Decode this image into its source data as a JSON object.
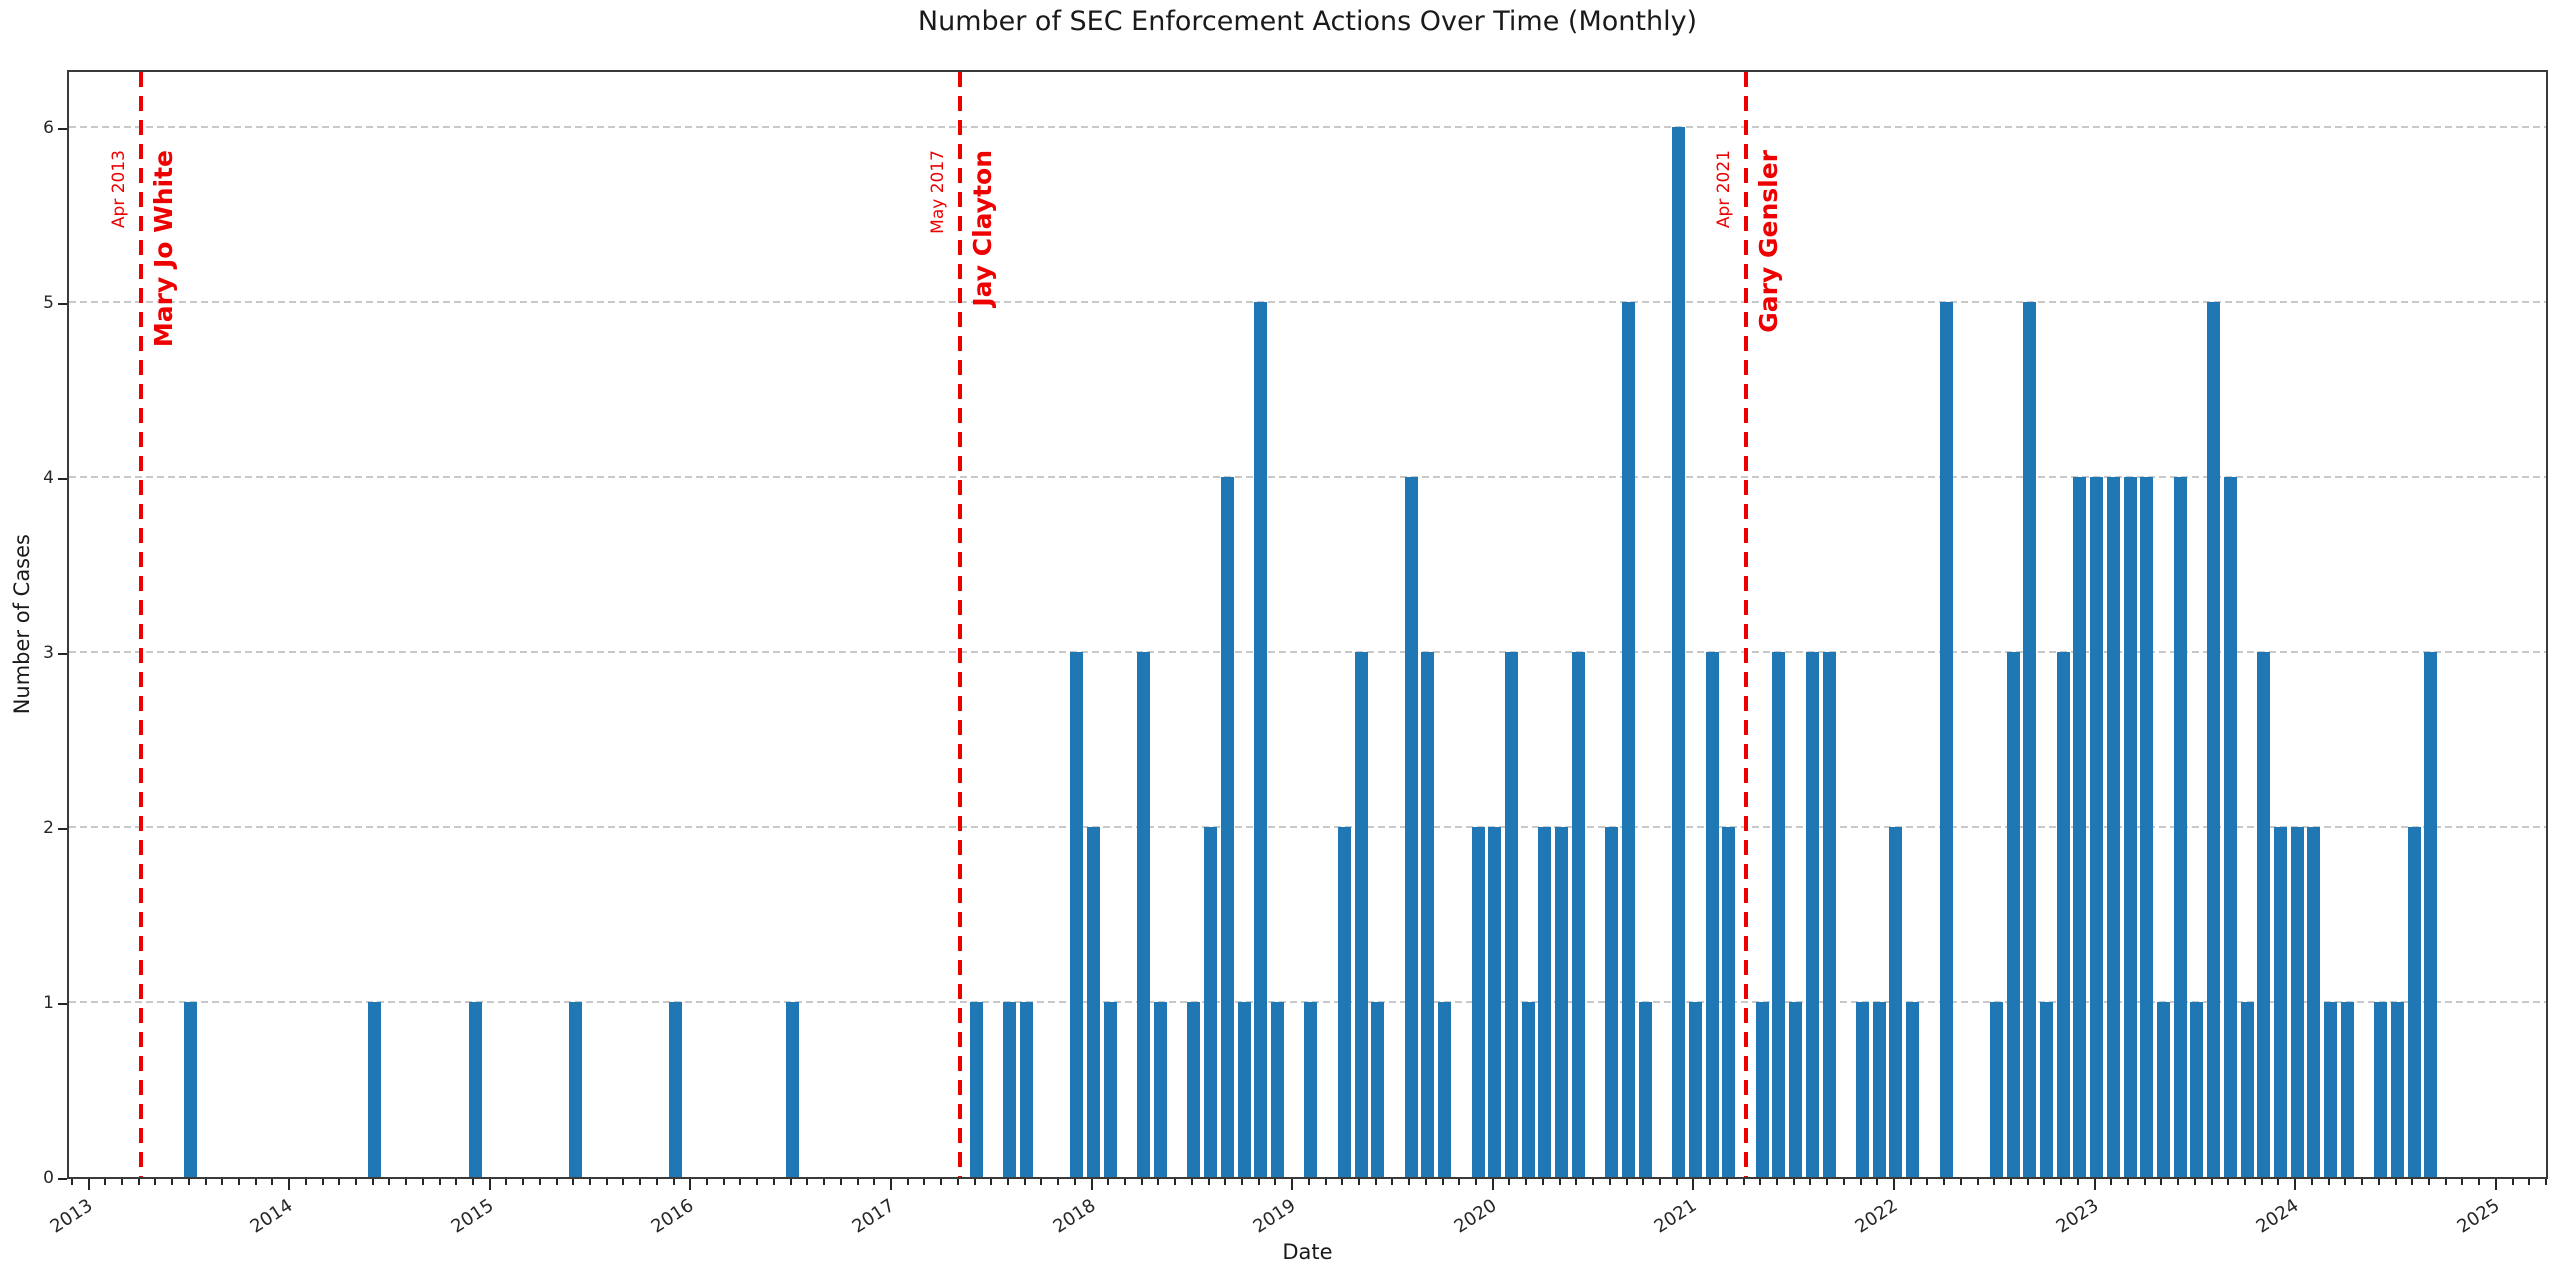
{
  "chart_data": {
    "type": "bar",
    "title": "Number of SEC Enforcement Actions Over Time (Monthly)",
    "xlabel": "Date",
    "ylabel": "Number of Cases",
    "y_ticks": [
      0,
      1,
      2,
      3,
      4,
      5,
      6
    ],
    "ylim": [
      0,
      6.34
    ],
    "x_tick_years": [
      2013,
      2014,
      2015,
      2016,
      2017,
      2018,
      2019,
      2020,
      2021,
      2022,
      2023,
      2024,
      2025
    ],
    "xlim_months": [
      "2012-12",
      "2025-04"
    ],
    "grid": "horizontal-dashed",
    "legend": "none",
    "bar_color": "#1f77b4",
    "annotation_color": "#ee0000",
    "points": [
      {
        "month": "2013-07",
        "value": 1
      },
      {
        "month": "2014-06",
        "value": 1
      },
      {
        "month": "2014-12",
        "value": 1
      },
      {
        "month": "2015-06",
        "value": 1
      },
      {
        "month": "2015-12",
        "value": 1
      },
      {
        "month": "2016-07",
        "value": 1
      },
      {
        "month": "2017-06",
        "value": 1
      },
      {
        "month": "2017-08",
        "value": 1
      },
      {
        "month": "2017-09",
        "value": 1
      },
      {
        "month": "2017-12",
        "value": 3
      },
      {
        "month": "2018-01",
        "value": 2
      },
      {
        "month": "2018-02",
        "value": 1
      },
      {
        "month": "2018-04",
        "value": 3
      },
      {
        "month": "2018-05",
        "value": 1
      },
      {
        "month": "2018-07",
        "value": 1
      },
      {
        "month": "2018-08",
        "value": 2
      },
      {
        "month": "2018-09",
        "value": 4
      },
      {
        "month": "2018-10",
        "value": 1
      },
      {
        "month": "2018-11",
        "value": 5
      },
      {
        "month": "2018-12",
        "value": 1
      },
      {
        "month": "2019-02",
        "value": 1
      },
      {
        "month": "2019-04",
        "value": 2
      },
      {
        "month": "2019-05",
        "value": 3
      },
      {
        "month": "2019-06",
        "value": 1
      },
      {
        "month": "2019-08",
        "value": 4
      },
      {
        "month": "2019-09",
        "value": 3
      },
      {
        "month": "2019-10",
        "value": 1
      },
      {
        "month": "2019-12",
        "value": 2
      },
      {
        "month": "2020-01",
        "value": 2
      },
      {
        "month": "2020-02",
        "value": 3
      },
      {
        "month": "2020-03",
        "value": 1
      },
      {
        "month": "2020-04",
        "value": 2
      },
      {
        "month": "2020-05",
        "value": 2
      },
      {
        "month": "2020-06",
        "value": 3
      },
      {
        "month": "2020-08",
        "value": 2
      },
      {
        "month": "2020-09",
        "value": 5
      },
      {
        "month": "2020-10",
        "value": 1
      },
      {
        "month": "2020-12",
        "value": 6
      },
      {
        "month": "2021-01",
        "value": 1
      },
      {
        "month": "2021-02",
        "value": 3
      },
      {
        "month": "2021-03",
        "value": 2
      },
      {
        "month": "2021-05",
        "value": 1
      },
      {
        "month": "2021-06",
        "value": 3
      },
      {
        "month": "2021-07",
        "value": 1
      },
      {
        "month": "2021-08",
        "value": 3
      },
      {
        "month": "2021-09",
        "value": 3
      },
      {
        "month": "2021-11",
        "value": 1
      },
      {
        "month": "2021-12",
        "value": 1
      },
      {
        "month": "2022-01",
        "value": 2
      },
      {
        "month": "2022-02",
        "value": 1
      },
      {
        "month": "2022-04",
        "value": 5
      },
      {
        "month": "2022-07",
        "value": 1
      },
      {
        "month": "2022-08",
        "value": 3
      },
      {
        "month": "2022-09",
        "value": 5
      },
      {
        "month": "2022-10",
        "value": 1
      },
      {
        "month": "2022-11",
        "value": 3
      },
      {
        "month": "2022-12",
        "value": 4
      },
      {
        "month": "2023-01",
        "value": 4
      },
      {
        "month": "2023-02",
        "value": 4
      },
      {
        "month": "2023-03",
        "value": 4
      },
      {
        "month": "2023-04",
        "value": 4
      },
      {
        "month": "2023-05",
        "value": 1
      },
      {
        "month": "2023-06",
        "value": 4
      },
      {
        "month": "2023-07",
        "value": 1
      },
      {
        "month": "2023-08",
        "value": 5
      },
      {
        "month": "2023-09",
        "value": 4
      },
      {
        "month": "2023-10",
        "value": 1
      },
      {
        "month": "2023-11",
        "value": 3
      },
      {
        "month": "2023-12",
        "value": 2
      },
      {
        "month": "2024-01",
        "value": 2
      },
      {
        "month": "2024-02",
        "value": 2
      },
      {
        "month": "2024-03",
        "value": 1
      },
      {
        "month": "2024-04",
        "value": 1
      },
      {
        "month": "2024-06",
        "value": 1
      },
      {
        "month": "2024-07",
        "value": 1
      },
      {
        "month": "2024-08",
        "value": 2
      },
      {
        "month": "2024-09",
        "value": 3
      }
    ],
    "annotations": [
      {
        "month": "2013-04",
        "date_label": "Apr 2013",
        "name": "Mary Jo White"
      },
      {
        "month": "2017-05",
        "date_label": "May 2017",
        "name": "Jay Clayton"
      },
      {
        "month": "2021-04",
        "date_label": "Apr 2021",
        "name": "Gary Gensler"
      }
    ]
  }
}
